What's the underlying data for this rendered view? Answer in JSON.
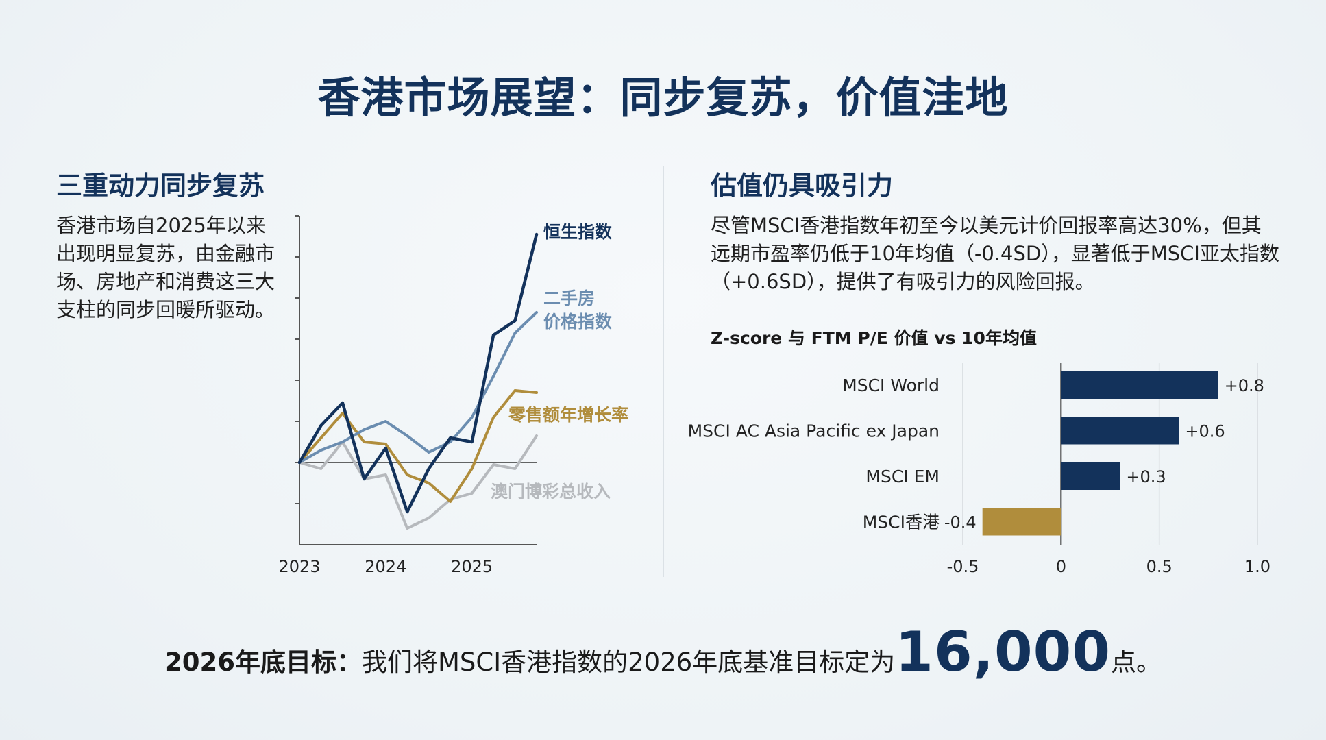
{
  "title": "香港市场展望：同步复苏，价值洼地",
  "left": {
    "heading": "三重动力同步复苏",
    "text": "香港市场自2025年以来出现明显复苏，由金融市场、房地产和消费这三大支柱的同步回暖所驱动。"
  },
  "right": {
    "heading": "估值仍具吸引力",
    "text": "尽管MSCI香港指数年初至今以美元计价回报率高达30%，但其远期市盈率仍低于10年均值（-0.4SD），显著低于MSCI亚太指数（+0.6SD），提供了有吸引力的风险回报。"
  },
  "footer": {
    "lead": "2026年底目标：",
    "body": "我们将MSCI香港指数的2026年底基准目标定为",
    "target": "16,000",
    "suffix": "点。"
  },
  "colors": {
    "navy": "#13325b",
    "steel": "#6b8db0",
    "gold": "#b08d3c",
    "gray": "#b6b9bd"
  },
  "chart_data": [
    {
      "type": "line",
      "title": "",
      "x_ticks": [
        "2023",
        "2024",
        "2025"
      ],
      "x": [
        2023.0,
        2023.25,
        2023.5,
        2023.75,
        2024.0,
        2024.25,
        2024.5,
        2024.75,
        2025.0,
        2025.25,
        2025.5,
        2025.75
      ],
      "ylim": [
        -4,
        12
      ],
      "grid": false,
      "baseline": 0,
      "series": [
        {
          "name": "恒生指数",
          "color": "#13325b",
          "values": [
            0,
            1.8,
            2.9,
            -0.8,
            0.7,
            -2.4,
            -0.3,
            1.2,
            1.0,
            6.2,
            6.9,
            11.1
          ]
        },
        {
          "name": "二手房价格指数",
          "color": "#6b8db0",
          "values": [
            0,
            0.6,
            1.0,
            1.6,
            2.0,
            1.3,
            0.5,
            1.0,
            2.2,
            4.2,
            6.3,
            7.3
          ]
        },
        {
          "name": "零售额年增长率",
          "color": "#b08d3c",
          "values": [
            0,
            1.2,
            2.4,
            1.0,
            0.9,
            -0.6,
            -1.0,
            -1.9,
            -0.3,
            2.2,
            3.5,
            3.4
          ]
        },
        {
          "name": "澳门博彩总收入",
          "color": "#b6b9bd",
          "values": [
            0,
            -0.3,
            1.0,
            -0.8,
            -0.6,
            -3.2,
            -2.7,
            -1.8,
            -1.5,
            -0.1,
            -0.3,
            1.3
          ]
        }
      ]
    },
    {
      "type": "bar",
      "orientation": "horizontal",
      "title": "Z-score 与 FTM P/E 价值 vs 10年均值",
      "categories": [
        "MSCI World",
        "MSCI AC Asia Pacific ex Japan",
        "MSCI EM",
        "MSCI香港"
      ],
      "values": [
        0.8,
        0.6,
        0.3,
        -0.4
      ],
      "labels": [
        "+0.8",
        "+0.6",
        "+0.3",
        "-0.4"
      ],
      "colors": [
        "#13325b",
        "#13325b",
        "#13325b",
        "#b08d3c"
      ],
      "xlim": [
        -0.5,
        1.0
      ],
      "x_ticks": [
        "-0.5",
        "0",
        "0.5",
        "1.0"
      ],
      "grid": true
    }
  ]
}
